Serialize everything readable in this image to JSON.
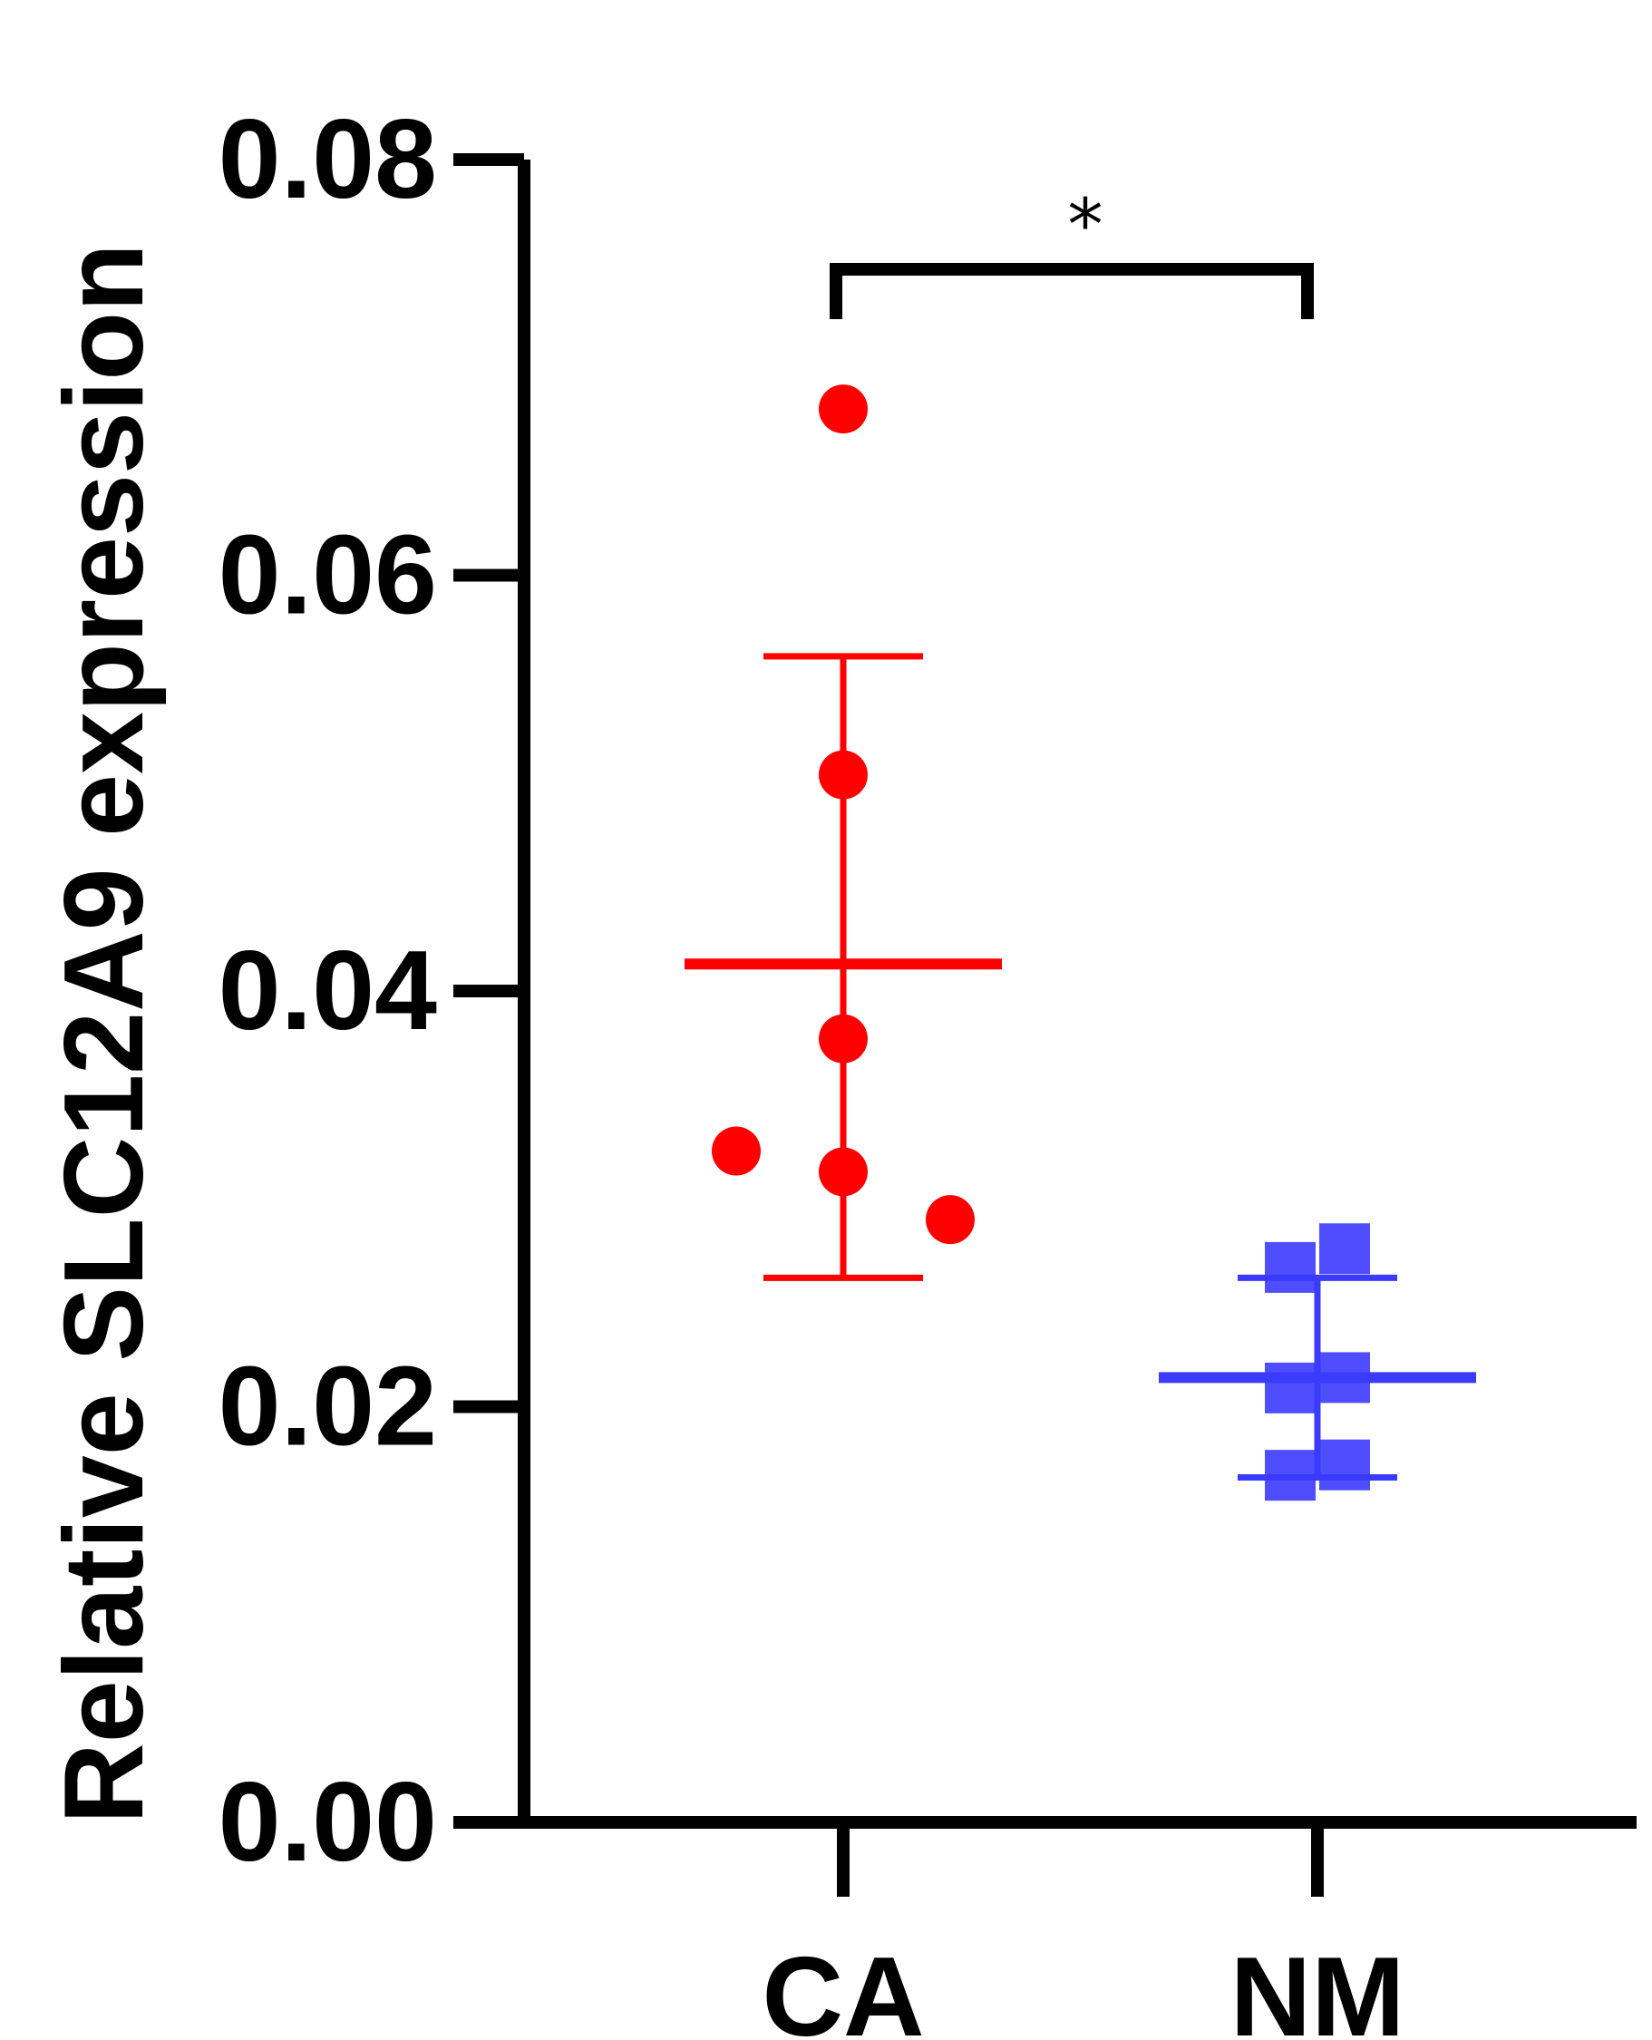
{
  "chart_data": {
    "type": "scatter",
    "title": "",
    "xlabel": "",
    "ylabel": "Relative SLC12A9 expression",
    "ylim": [
      0,
      0.08
    ],
    "yticks": [
      "0.00",
      "0.02",
      "0.04",
      "0.06",
      "0.08"
    ],
    "categories": [
      "CA",
      "NM"
    ],
    "grid": false,
    "legend": "none",
    "series": [
      {
        "category": "CA",
        "color": "#ff0000",
        "marker": "circle",
        "points": [
          0.068,
          0.0504,
          0.0377,
          0.0323,
          0.0313,
          0.029
        ],
        "mean": 0.0413,
        "error_upper": 0.0561,
        "error_lower": 0.0262
      },
      {
        "category": "NM",
        "color": "#3b3bff",
        "marker": "square",
        "points": [
          0.0276,
          0.0267,
          0.0214,
          0.0209,
          0.0172,
          0.0167
        ],
        "mean": 0.0214,
        "error_upper": 0.0262,
        "error_lower": 0.0166
      }
    ],
    "annotations": [
      {
        "type": "significance-bracket",
        "text": "*",
        "from": "CA",
        "to": "NM"
      }
    ]
  }
}
